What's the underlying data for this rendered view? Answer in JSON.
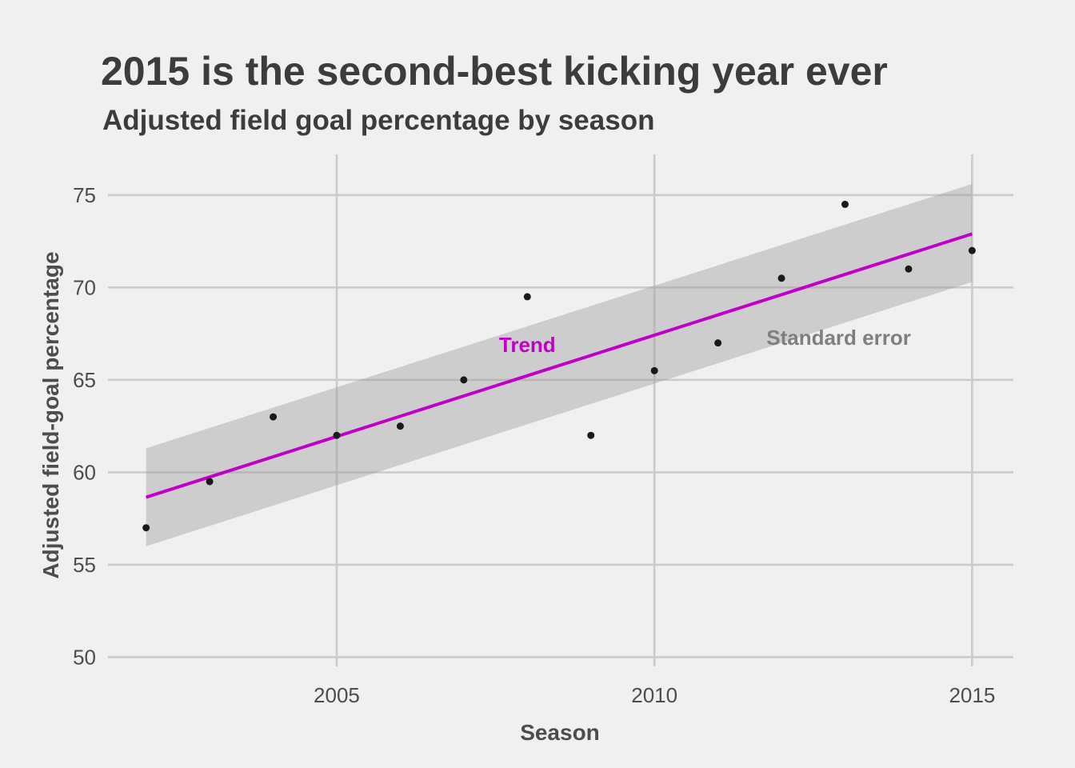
{
  "chart_data": {
    "type": "scatter",
    "title": "2015 is the second-best kicking year ever",
    "subtitle": "Adjusted field goal percentage by season",
    "xlabel": "Season",
    "ylabel": "Adjusted field-goal percentage",
    "xlim": [
      2001.4,
      2015.65
    ],
    "ylim": [
      49.5,
      77.2
    ],
    "x_ticks": [
      2005,
      2010,
      2015
    ],
    "y_ticks": [
      50,
      55,
      60,
      65,
      70,
      75
    ],
    "grid": true,
    "legend": "none",
    "colors": {
      "background": "#f0f0f0",
      "grid": "#cbcbcb",
      "points": "#1a1a1a",
      "trend": "#c000c8",
      "band": "#999999",
      "text": "#3c3c3c",
      "band_label": "#7f7f7f"
    },
    "series": [
      {
        "points": [
          {
            "x": 2002,
            "y": 57.0
          },
          {
            "x": 2003,
            "y": 59.5
          },
          {
            "x": 2004,
            "y": 63.0
          },
          {
            "x": 2005,
            "y": 62.0
          },
          {
            "x": 2006,
            "y": 62.5
          },
          {
            "x": 2007,
            "y": 65.0
          },
          {
            "x": 2008,
            "y": 69.5
          },
          {
            "x": 2009,
            "y": 62.0
          },
          {
            "x": 2010,
            "y": 65.5
          },
          {
            "x": 2011,
            "y": 67.0
          },
          {
            "x": 2012,
            "y": 70.5
          },
          {
            "x": 2013,
            "y": 74.5
          },
          {
            "x": 2014,
            "y": 71.0
          },
          {
            "x": 2015,
            "y": 72.0
          }
        ]
      }
    ],
    "trend": {
      "x": [
        2002,
        2015
      ],
      "y": [
        58.65,
        72.9
      ]
    },
    "standard_error_band": {
      "x": [
        2002,
        2015
      ],
      "upper": [
        61.3,
        75.6
      ],
      "lower": [
        56.0,
        70.3
      ]
    },
    "annotations": [
      {
        "text": "Trend",
        "x": 2008.0,
        "y": 66.5,
        "color": "#c000c8"
      },
      {
        "text": "Standard error",
        "x": 2012.9,
        "y": 66.9,
        "color": "#7f7f7f"
      }
    ]
  }
}
